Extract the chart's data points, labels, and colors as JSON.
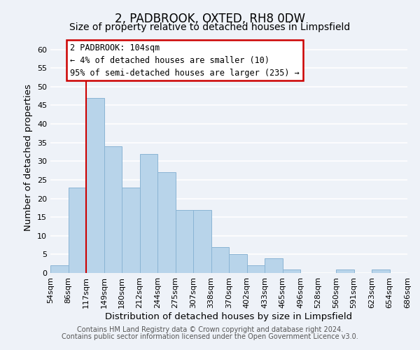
{
  "title": "2, PADBROOK, OXTED, RH8 0DW",
  "subtitle": "Size of property relative to detached houses in Limpsfield",
  "xlabel": "Distribution of detached houses by size in Limpsfield",
  "ylabel": "Number of detached properties",
  "bar_values": [
    2,
    23,
    47,
    34,
    23,
    32,
    27,
    17,
    17,
    7,
    5,
    2,
    4,
    1,
    0,
    0,
    1,
    0,
    1
  ],
  "bin_labels": [
    "54sqm",
    "86sqm",
    "117sqm",
    "149sqm",
    "180sqm",
    "212sqm",
    "244sqm",
    "275sqm",
    "307sqm",
    "338sqm",
    "370sqm",
    "402sqm",
    "433sqm",
    "465sqm",
    "496sqm",
    "528sqm",
    "560sqm",
    "591sqm",
    "623sqm",
    "654sqm",
    "686sqm"
  ],
  "bar_color": "#b8d4ea",
  "bar_edge_color": "#8ab4d4",
  "red_line_index": 2,
  "ylim": [
    0,
    62
  ],
  "yticks": [
    0,
    5,
    10,
    15,
    20,
    25,
    30,
    35,
    40,
    45,
    50,
    55,
    60
  ],
  "annotation_title": "2 PADBROOK: 104sqm",
  "annotation_line1": "← 4% of detached houses are smaller (10)",
  "annotation_line2": "95% of semi-detached houses are larger (235) →",
  "annotation_box_color": "#ffffff",
  "annotation_box_edge_color": "#cc0000",
  "footer_line1": "Contains HM Land Registry data © Crown copyright and database right 2024.",
  "footer_line2": "Contains public sector information licensed under the Open Government Licence v3.0.",
  "background_color": "#eef2f8",
  "grid_color": "#ffffff",
  "title_fontsize": 12,
  "subtitle_fontsize": 10,
  "axis_label_fontsize": 9.5,
  "tick_fontsize": 8,
  "footer_fontsize": 7,
  "ann_fontsize": 8.5
}
